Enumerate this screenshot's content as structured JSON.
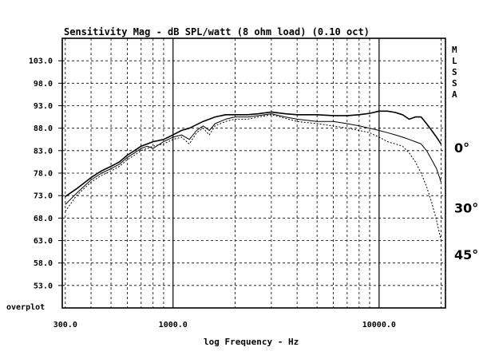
{
  "chart_data": {
    "type": "line",
    "title": "Sensitivity Mag - dB SPL/watt (8 ohm load) (0.10 oct)",
    "xlabel": "log Frequency - Hz",
    "ylabel": "",
    "x_scale": "log",
    "xlim": [
      290,
      21000
    ],
    "ylim": [
      48,
      108
    ],
    "grid": true,
    "x_ticks": [
      300,
      1000,
      10000
    ],
    "x_tick_labels": [
      "300.0",
      "1000.0",
      "10000.0"
    ],
    "y_ticks": [
      103,
      98,
      93,
      88,
      83,
      78,
      73,
      68,
      63,
      58,
      53
    ],
    "y_tick_labels": [
      "103.0",
      "98.0",
      "93.0",
      "88.0",
      "83.0",
      "78.0",
      "73.0",
      "68.0",
      "63.0",
      "58.0",
      "53.0"
    ],
    "corner_label": "overplot",
    "side_label": "M L S S A",
    "series": [
      {
        "name": "0°",
        "x": [
          300,
          340,
          400,
          450,
          500,
          550,
          600,
          650,
          700,
          750,
          800,
          900,
          1000,
          1100,
          1200,
          1400,
          1600,
          1800,
          2000,
          2300,
          2600,
          3000,
          3500,
          4000,
          4500,
          5000,
          6000,
          7000,
          8000,
          9000,
          10000,
          11000,
          12000,
          13000,
          14000,
          15000,
          16000,
          17000,
          18000,
          19000,
          20000
        ],
        "values": [
          72.8,
          74.5,
          77,
          78.5,
          79.5,
          80.5,
          82,
          83,
          84,
          84.5,
          85,
          85.5,
          86.5,
          87.5,
          88,
          89.5,
          90.5,
          91,
          91,
          91,
          91.2,
          91.6,
          91.2,
          91,
          91,
          91,
          90.8,
          90.8,
          91,
          91.3,
          91.8,
          91.8,
          91.5,
          91,
          90,
          90.5,
          90.5,
          89,
          87.5,
          86,
          84.5
        ]
      },
      {
        "name": "30°",
        "x": [
          300,
          340,
          400,
          450,
          500,
          550,
          600,
          650,
          700,
          750,
          800,
          900,
          1000,
          1100,
          1200,
          1300,
          1400,
          1500,
          1600,
          1800,
          2000,
          2300,
          2600,
          3000,
          3500,
          4000,
          5000,
          6000,
          7000,
          8000,
          9000,
          10000,
          11000,
          12000,
          13000,
          14000,
          15000,
          16000,
          17000,
          18000,
          19000,
          20000
        ],
        "values": [
          71,
          73.5,
          76.5,
          78,
          79,
          80,
          81.5,
          82.5,
          83.5,
          84,
          83.5,
          85,
          86,
          86.5,
          85.5,
          87.5,
          88.5,
          87.5,
          89,
          90,
          90.5,
          90.5,
          90.8,
          91.2,
          90.5,
          90,
          89.5,
          89.5,
          89,
          88.5,
          88,
          87.5,
          87,
          86.5,
          86,
          85.5,
          85,
          84.5,
          83,
          81,
          79,
          76
        ]
      },
      {
        "name": "45°",
        "x": [
          300,
          340,
          400,
          450,
          500,
          550,
          600,
          650,
          700,
          750,
          800,
          900,
          1000,
          1100,
          1200,
          1300,
          1400,
          1500,
          1600,
          1800,
          2000,
          2300,
          2600,
          3000,
          3500,
          4000,
          5000,
          6000,
          7000,
          8000,
          9000,
          10000,
          11000,
          12000,
          13000,
          14000,
          15000,
          16000,
          17000,
          18000,
          19000,
          20000
        ],
        "values": [
          69.5,
          73,
          76,
          77.5,
          78.5,
          79.5,
          81,
          82,
          83,
          83.5,
          84,
          84.5,
          85.5,
          86,
          84.5,
          87,
          88,
          86.5,
          88.5,
          89.5,
          90,
          90,
          90.5,
          91,
          90.2,
          89.5,
          89,
          88.5,
          88,
          87.5,
          87,
          86,
          85,
          84.5,
          84,
          82.5,
          80.5,
          78,
          75,
          71.5,
          67.5,
          63
        ]
      }
    ]
  }
}
